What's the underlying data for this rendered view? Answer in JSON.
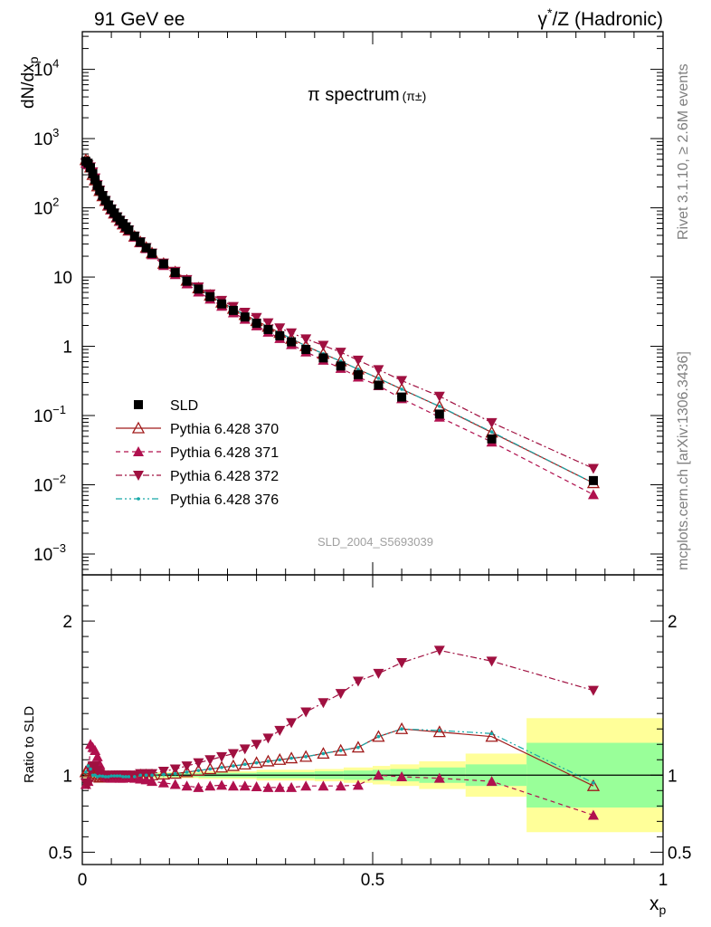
{
  "header": {
    "left": "91 GeV ee",
    "right_main": "γ",
    "right_sup": "*",
    "right_rest": "/Z (Hadronic)"
  },
  "side_labels": {
    "rivet": "Rivet 3.1.10, ≥ 2.6M events",
    "mcplots": "mcplots.cern.ch [arXiv:1306.3436]"
  },
  "watermark": "SLD_2004_S5693039",
  "colors": {
    "data": "#000000",
    "p370": "#a01a1a",
    "p371": "#b0104e",
    "p372": "#a01040",
    "p376": "#16a8a8",
    "band_inner": "#99ff99",
    "band_outer": "#ffff99"
  },
  "chart_data": [
    {
      "type": "scatter",
      "title_main": "π spectrum",
      "title_sub": "(π±)",
      "ylabel": "dN/dx",
      "ylabel_sub": "p",
      "yscale": "log",
      "xlim": [
        0,
        1
      ],
      "ylim": [
        0.0005,
        35000
      ],
      "y_ticks": [
        {
          "v": 0.001,
          "b": "10",
          "e": "−3"
        },
        {
          "v": 0.01,
          "b": "10",
          "e": "−2"
        },
        {
          "v": 0.1,
          "b": "10",
          "e": "−1"
        },
        {
          "v": 1,
          "b": "1",
          "e": ""
        },
        {
          "v": 10,
          "b": "10",
          "e": ""
        },
        {
          "v": 100,
          "b": "10",
          "e": "2"
        },
        {
          "v": 1000,
          "b": "10",
          "e": "3"
        },
        {
          "v": 10000,
          "b": "10",
          "e": "4"
        }
      ],
      "x": [
        0.006,
        0.01,
        0.014,
        0.018,
        0.022,
        0.026,
        0.03,
        0.035,
        0.04,
        0.045,
        0.05,
        0.055,
        0.06,
        0.065,
        0.07,
        0.075,
        0.08,
        0.09,
        0.1,
        0.11,
        0.12,
        0.14,
        0.16,
        0.18,
        0.2,
        0.22,
        0.24,
        0.26,
        0.28,
        0.3,
        0.32,
        0.34,
        0.36,
        0.385,
        0.415,
        0.445,
        0.475,
        0.51,
        0.55,
        0.615,
        0.705,
        0.88
      ],
      "series": [
        {
          "name": "SLD",
          "key": "data",
          "values": [
            470,
            440,
            380,
            310,
            255,
            210,
            178,
            150,
            128,
            110,
            96,
            84,
            74,
            66,
            59,
            53,
            48,
            39,
            32,
            26.5,
            22,
            15.5,
            11.6,
            8.7,
            6.7,
            5.2,
            4.1,
            3.3,
            2.65,
            2.15,
            1.75,
            1.42,
            1.16,
            0.9,
            0.68,
            0.52,
            0.39,
            0.275,
            0.185,
            0.105,
            0.046,
            0.0115
          ]
        },
        {
          "name": "Pythia 6.428 370",
          "key": "p370",
          "values": [
            490,
            470,
            385,
            300,
            250,
            205,
            176,
            148,
            126,
            108,
            95,
            83,
            73,
            65,
            58,
            52,
            47,
            38.5,
            32,
            26.6,
            22.1,
            15.6,
            11.8,
            8.9,
            6.9,
            5.4,
            4.3,
            3.5,
            2.85,
            2.33,
            1.92,
            1.57,
            1.29,
            1.01,
            0.78,
            0.61,
            0.465,
            0.345,
            0.24,
            0.135,
            0.057,
            0.0106
          ]
        },
        {
          "name": "Pythia 6.428 371",
          "key": "p371",
          "values": [
            440,
            420,
            410,
            345,
            285,
            225,
            185,
            152,
            127,
            108,
            94,
            83,
            73,
            64,
            58,
            52,
            47,
            38,
            31.5,
            25.8,
            21,
            14.7,
            10.9,
            8.0,
            6.1,
            4.8,
            3.8,
            3.05,
            2.46,
            1.98,
            1.6,
            1.3,
            1.06,
            0.83,
            0.63,
            0.48,
            0.36,
            0.27,
            0.175,
            0.095,
            0.0415,
            0.0072
          ]
        },
        {
          "name": "Pythia 6.428 372",
          "key": "p372",
          "values": [
            445,
            415,
            390,
            330,
            270,
            215,
            180,
            150,
            127,
            109,
            96,
            84,
            74,
            66,
            59,
            53,
            48,
            39,
            32.3,
            26.6,
            22.2,
            15.9,
            12.1,
            9.2,
            7.2,
            5.7,
            4.6,
            3.75,
            3.1,
            2.6,
            2.18,
            1.84,
            1.56,
            1.28,
            1.03,
            0.82,
            0.63,
            0.46,
            0.32,
            0.19,
            0.079,
            0.0172
          ]
        },
        {
          "name": "Pythia 6.428 376",
          "key": "p376",
          "values": [
            480,
            465,
            395,
            310,
            255,
            208,
            177,
            149,
            127,
            109,
            95.5,
            83.5,
            73.5,
            65.5,
            58.5,
            52.5,
            47.5,
            38.7,
            32,
            26.6,
            22,
            15.6,
            11.8,
            8.9,
            6.9,
            5.4,
            4.3,
            3.5,
            2.85,
            2.33,
            1.92,
            1.57,
            1.29,
            1.01,
            0.78,
            0.61,
            0.465,
            0.345,
            0.24,
            0.136,
            0.058,
            0.0106
          ]
        }
      ],
      "legend": [
        "SLD",
        "Pythia 6.428 370",
        "Pythia 6.428 371",
        "Pythia 6.428 372",
        "Pythia 6.428 376"
      ],
      "legend_placement": "lower-left"
    },
    {
      "type": "line",
      "ylabel": "Ratio to SLD",
      "xlabel": "x",
      "xlabel_sub": "p",
      "xlim": [
        0,
        1
      ],
      "ylim": [
        0.42,
        2.3
      ],
      "x_ticks": [
        {
          "v": 0,
          "label": "0"
        },
        {
          "v": 0.5,
          "label": "0.5"
        },
        {
          "v": 1,
          "label": "1"
        }
      ],
      "y_ticks": [
        {
          "v": 0.5,
          "label": "0.5"
        },
        {
          "v": 1,
          "label": "1"
        },
        {
          "v": 2,
          "label": "2"
        }
      ],
      "reference": 1,
      "bands": [
        {
          "x0": 0.0,
          "x1": 0.04,
          "inner": 0.015,
          "outer": 0.02
        },
        {
          "x0": 0.04,
          "x1": 0.1,
          "inner": 0.01,
          "outer": 0.015
        },
        {
          "x0": 0.1,
          "x1": 0.2,
          "inner": 0.012,
          "outer": 0.02
        },
        {
          "x0": 0.2,
          "x1": 0.3,
          "inner": 0.015,
          "outer": 0.025
        },
        {
          "x0": 0.3,
          "x1": 0.4,
          "inner": 0.02,
          "outer": 0.035
        },
        {
          "x0": 0.4,
          "x1": 0.45,
          "inner": 0.025,
          "outer": 0.04
        },
        {
          "x0": 0.45,
          "x1": 0.5,
          "inner": 0.03,
          "outer": 0.05
        },
        {
          "x0": 0.5,
          "x1": 0.53,
          "inner": 0.035,
          "outer": 0.06
        },
        {
          "x0": 0.53,
          "x1": 0.58,
          "inner": 0.04,
          "outer": 0.07
        },
        {
          "x0": 0.58,
          "x1": 0.66,
          "inner": 0.05,
          "outer": 0.09
        },
        {
          "x0": 0.66,
          "x1": 0.765,
          "inner": 0.07,
          "outer": 0.14
        },
        {
          "x0": 0.765,
          "x1": 1.0,
          "inner": 0.21,
          "outer": 0.37
        }
      ],
      "x": [
        0.006,
        0.01,
        0.014,
        0.018,
        0.022,
        0.026,
        0.03,
        0.035,
        0.04,
        0.045,
        0.05,
        0.055,
        0.06,
        0.065,
        0.07,
        0.075,
        0.08,
        0.09,
        0.1,
        0.11,
        0.12,
        0.14,
        0.16,
        0.18,
        0.2,
        0.22,
        0.24,
        0.26,
        0.28,
        0.3,
        0.32,
        0.34,
        0.36,
        0.385,
        0.415,
        0.445,
        0.475,
        0.51,
        0.55,
        0.615,
        0.705,
        0.88
      ],
      "series": [
        {
          "name": "Pythia 6.428 370",
          "key": "p370",
          "values": [
            1.02,
            1.04,
            1.03,
            1.01,
            1.0,
            0.99,
            0.985,
            0.985,
            0.99,
            0.99,
            0.99,
            0.99,
            0.99,
            0.99,
            0.99,
            0.99,
            0.99,
            0.99,
            1.0,
            1.0,
            1.0,
            1.005,
            1.01,
            1.02,
            1.03,
            1.04,
            1.05,
            1.06,
            1.07,
            1.08,
            1.09,
            1.1,
            1.11,
            1.12,
            1.14,
            1.16,
            1.18,
            1.25,
            1.3,
            1.28,
            1.25,
            0.93
          ]
        },
        {
          "name": "Pythia 6.428 371",
          "key": "p371",
          "values": [
            0.94,
            0.96,
            1.2,
            1.18,
            1.16,
            1.12,
            1.07,
            1.02,
            0.99,
            0.985,
            0.98,
            0.985,
            0.985,
            0.98,
            0.98,
            0.985,
            0.985,
            0.98,
            0.975,
            0.97,
            0.96,
            0.95,
            0.94,
            0.93,
            0.92,
            0.93,
            0.935,
            0.93,
            0.93,
            0.925,
            0.92,
            0.92,
            0.92,
            0.93,
            0.93,
            0.93,
            0.935,
            1.0,
            0.99,
            0.98,
            0.96,
            0.74
          ]
        },
        {
          "name": "Pythia 6.428 372",
          "key": "p372",
          "values": [
            0.95,
            0.94,
            1.03,
            1.06,
            1.06,
            1.03,
            1.01,
            1.0,
            0.99,
            0.99,
            1.0,
            1.0,
            1.0,
            1.0,
            1.0,
            1.0,
            1.0,
            1.0,
            1.01,
            1.01,
            1.01,
            1.025,
            1.04,
            1.06,
            1.08,
            1.1,
            1.12,
            1.14,
            1.17,
            1.2,
            1.24,
            1.29,
            1.34,
            1.41,
            1.47,
            1.53,
            1.61,
            1.66,
            1.73,
            1.81,
            1.74,
            1.55
          ]
        },
        {
          "name": "Pythia 6.428 376",
          "key": "p376",
          "values": [
            1.02,
            1.06,
            1.04,
            1.0,
            1.0,
            0.99,
            0.995,
            0.993,
            0.99,
            0.99,
            0.995,
            0.995,
            0.995,
            0.995,
            0.99,
            0.99,
            0.99,
            0.99,
            1.0,
            1.0,
            1.0,
            1.005,
            1.01,
            1.02,
            1.03,
            1.04,
            1.05,
            1.06,
            1.07,
            1.08,
            1.09,
            1.1,
            1.11,
            1.12,
            1.14,
            1.16,
            1.18,
            1.25,
            1.3,
            1.29,
            1.27,
            0.95
          ]
        }
      ]
    }
  ]
}
